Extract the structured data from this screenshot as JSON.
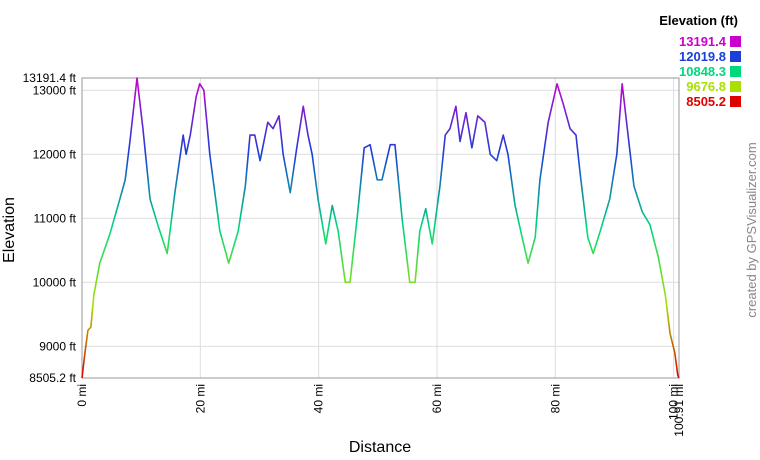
{
  "chart_data": {
    "type": "line",
    "y_label": "Elevation",
    "x_label": "Distance",
    "credit": "created by GPSVisualizer.com",
    "legend_title": "Elevation (ft)",
    "legend": [
      {
        "value": 13191.4,
        "color": "#cc00cc"
      },
      {
        "value": 12019.8,
        "color": "#1a40d8"
      },
      {
        "value": 10848.3,
        "color": "#00d87c"
      },
      {
        "value": 9676.8,
        "color": "#a8e000"
      },
      {
        "value": 8505.2,
        "color": "#e00000"
      }
    ],
    "xlim": [
      0,
      100.91
    ],
    "ylim": [
      8505.2,
      13191.4
    ],
    "xticks": [
      {
        "value": 0,
        "label": "0 mi"
      },
      {
        "value": 20,
        "label": "20 mi"
      },
      {
        "value": 40,
        "label": "40 mi"
      },
      {
        "value": 60,
        "label": "60 mi"
      },
      {
        "value": 80,
        "label": "80 mi"
      },
      {
        "value": 100,
        "label": "100 mi"
      },
      {
        "value": 100.91,
        "label": "100.91 mi"
      }
    ],
    "yticks": [
      {
        "value": 8505.2,
        "label": "8505.2 ft"
      },
      {
        "value": 9000,
        "label": "9000 ft"
      },
      {
        "value": 10000,
        "label": "10000 ft"
      },
      {
        "value": 11000,
        "label": "11000 ft"
      },
      {
        "value": 12000,
        "label": "12000 ft"
      },
      {
        "value": 13000,
        "label": "13000 ft"
      },
      {
        "value": 13191.4,
        "label": "13191.4 ft"
      }
    ],
    "grid": true,
    "x": [
      0,
      0.5,
      1,
      1.5,
      2,
      3,
      4.7,
      6.4,
      7.3,
      8.1,
      9.3,
      10.3,
      11.5,
      12.8,
      14.4,
      15.7,
      17.1,
      17.6,
      18.3,
      19.3,
      19.9,
      20.6,
      21.6,
      23.3,
      24.8,
      26.4,
      27.6,
      28.4,
      29.2,
      30.1,
      31.4,
      32.3,
      33.3,
      34,
      35.2,
      36.3,
      37.4,
      38.2,
      38.9,
      39.9,
      41.2,
      42.3,
      43.3,
      44.5,
      45.3,
      46.5,
      47.7,
      48.7,
      49.9,
      50.7,
      52.1,
      52.9,
      54.1,
      55.4,
      56.3,
      57.1,
      58.1,
      59.2,
      60.5,
      61.4,
      62.2,
      63.2,
      63.9,
      64.9,
      65.9,
      66.9,
      68.1,
      69,
      70.1,
      71.2,
      72,
      73.2,
      74.4,
      75.4,
      76.6,
      77.4,
      78.8,
      80.3,
      81.3,
      82.5,
      83.5,
      84.2,
      85.5,
      86.4,
      87.6,
      89.2,
      90.4,
      91.3,
      92.3,
      93.3,
      94.7,
      96,
      97.4,
      98.6,
      99.4,
      100.2,
      100.7,
      100.91
    ],
    "values": [
      8505,
      8900,
      9250,
      9300,
      9800,
      10300,
      10750,
      11300,
      11600,
      12200,
      13191,
      12400,
      11300,
      10900,
      10450,
      11400,
      12300,
      12000,
      12300,
      12900,
      13100,
      13000,
      12000,
      10800,
      10300,
      10800,
      11500,
      12300,
      12300,
      11900,
      12500,
      12400,
      12600,
      12000,
      11400,
      12100,
      12750,
      12300,
      12000,
      11300,
      10600,
      11200,
      10800,
      10000,
      10000,
      11000,
      12100,
      12150,
      11600,
      11600,
      12150,
      12150,
      11000,
      10000,
      10000,
      10800,
      11150,
      10600,
      11500,
      12300,
      12400,
      12750,
      12200,
      12650,
      12100,
      12600,
      12500,
      12000,
      11900,
      12300,
      12000,
      11200,
      10700,
      10300,
      10700,
      11600,
      12500,
      13100,
      12800,
      12400,
      12300,
      11700,
      10700,
      10450,
      10800,
      11300,
      12000,
      13100,
      12300,
      11500,
      11100,
      10900,
      10400,
      9800,
      9200,
      8900,
      8550,
      8505
    ]
  }
}
